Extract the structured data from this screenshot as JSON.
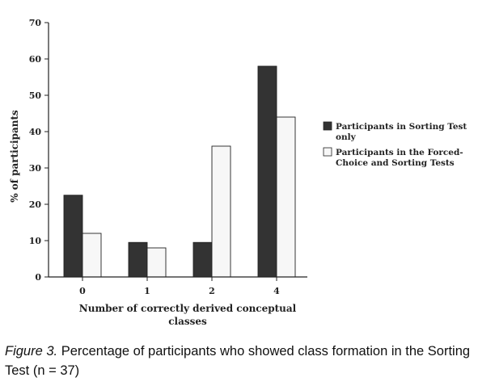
{
  "chart_data": {
    "type": "bar",
    "categories": [
      "0",
      "1",
      "2",
      "4"
    ],
    "series": [
      {
        "name": "Participants in Sorting Test only",
        "values": [
          22.5,
          9.5,
          9.5,
          58
        ],
        "color": "#333333"
      },
      {
        "name": "Participants in the Forced-Choice and Sorting Tests",
        "values": [
          12,
          8,
          36,
          44
        ],
        "color": "#f7f7f7"
      }
    ],
    "legend_lines": [
      [
        "Participants in Sorting Test",
        "only"
      ],
      [
        "Participants in the Forced-",
        "Choice and Sorting Tests"
      ]
    ],
    "xlabel_lines": [
      "Number of correctly derived conceptual",
      "classes"
    ],
    "ylabel": "% of participants",
    "ylim": [
      0,
      70
    ],
    "yticks": [
      0,
      10,
      20,
      30,
      40,
      50,
      60,
      70
    ],
    "legend_position": "right",
    "grid": false
  },
  "caption": {
    "label": "Figure 3.",
    "text": " Percentage of participants who showed class formation in the Sorting Test (n = 37)"
  }
}
